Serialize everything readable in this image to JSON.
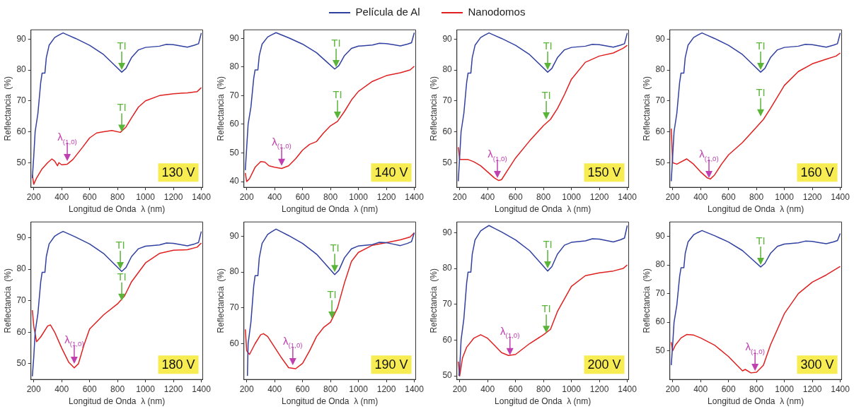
{
  "chart_data": [
    {
      "type": "line",
      "legend": "top",
      "xlabel": "Longitud de Onda  λ (nm)",
      "ylabel": "Reflectancia  (%)",
      "xlim": [
        180,
        1410
      ],
      "xticks": [
        200,
        400,
        600,
        800,
        1000,
        1200,
        1400
      ],
      "ylim": [
        42,
        93
      ],
      "yticks": [
        50,
        60,
        70,
        80,
        90
      ],
      "series": [
        {
          "name": "Película de Al",
          "color": "#3040a0",
          "x": [
            190,
            200,
            210,
            230,
            250,
            260,
            280,
            290,
            310,
            350,
            380,
            410,
            450,
            500,
            600,
            700,
            780,
            830,
            860,
            900,
            950,
            1000,
            1100,
            1150,
            1200,
            1250,
            1300,
            1350,
            1380,
            1400
          ],
          "values": [
            45,
            52,
            60,
            66,
            76,
            79,
            79,
            84,
            88,
            90.5,
            91.3,
            92,
            91.2,
            90.2,
            88,
            85,
            81.5,
            79.3,
            80.5,
            84,
            86.5,
            87.3,
            87.7,
            88.3,
            88.2,
            87.8,
            87.4,
            88,
            88.5,
            92
          ]
        },
        {
          "name": "Nanodomos",
          "color": "#e02020",
          "x": [
            190,
            200,
            220,
            260,
            300,
            330,
            350,
            370,
            380,
            400,
            440,
            480,
            550,
            600,
            650,
            700,
            760,
            820,
            860,
            900,
            950,
            1000,
            1100,
            1200,
            1300,
            1370,
            1400
          ],
          "values": [
            46,
            43,
            45,
            48,
            50,
            51.2,
            50.5,
            49,
            50,
            49.3,
            49.5,
            51,
            55,
            58,
            59.6,
            60,
            60.4,
            59.8,
            61.5,
            64.5,
            68,
            70,
            71.7,
            72.3,
            72.6,
            73,
            74.3
          ]
        }
      ],
      "annotations": [
        {
          "text": "λ$_{(1,0)}$",
          "x": 440,
          "y": 50.5
        },
        {
          "text": "TI",
          "x": 830,
          "y": 80
        },
        {
          "text": "TI",
          "x": 830,
          "y": 60
        },
        "130 V"
      ]
    },
    {
      "type": "line",
      "xlabel": "Longitud de Onda  λ (nm)",
      "ylabel": "Reflectancia  (%)",
      "xlim": [
        180,
        1410
      ],
      "xticks": [
        200,
        400,
        600,
        800,
        1000,
        1200,
        1400
      ],
      "ylim": [
        38,
        93
      ],
      "yticks": [
        40,
        50,
        60,
        70,
        80,
        90
      ],
      "series": [
        {
          "color": "#3040a0",
          "x": [
            190,
            200,
            210,
            230,
            250,
            260,
            280,
            290,
            310,
            350,
            380,
            410,
            450,
            500,
            600,
            700,
            780,
            830,
            860,
            900,
            950,
            1000,
            1100,
            1150,
            1200,
            1250,
            1300,
            1350,
            1380,
            1400
          ],
          "values": [
            44,
            52,
            60,
            66,
            76,
            79,
            79,
            84,
            88,
            90.5,
            91.3,
            92,
            91.2,
            90.2,
            88,
            85,
            81.5,
            79.3,
            80.5,
            84,
            86.5,
            87.3,
            87.7,
            88.3,
            88.2,
            87.8,
            87.4,
            88,
            88.5,
            92
          ]
        },
        {
          "color": "#e02020",
          "x": [
            190,
            200,
            220,
            260,
            300,
            330,
            360,
            400,
            450,
            500,
            550,
            600,
            650,
            700,
            750,
            800,
            850,
            900,
            950,
            1000,
            1100,
            1200,
            1300,
            1370,
            1400
          ],
          "values": [
            43,
            40,
            41,
            45,
            47,
            46.8,
            45.5,
            45,
            44.6,
            45.5,
            48,
            51,
            53,
            54,
            57,
            59.5,
            61,
            64.5,
            68.5,
            71.5,
            75,
            77,
            78,
            79,
            80.3
          ]
        }
      ],
      "annotations": [
        {
          "text": "λ$_{(1,0)}$",
          "x": 450,
          "y": 45.5
        },
        {
          "text": "TI",
          "x": 840,
          "y": 80
        },
        {
          "text": "TI",
          "x": 850,
          "y": 62
        },
        "140 V"
      ]
    },
    {
      "type": "line",
      "xlabel": "Longitud de Onda  λ (nm)",
      "ylabel": "Reflectancia  (%)",
      "xlim": [
        180,
        1410
      ],
      "xticks": [
        200,
        400,
        600,
        800,
        1000,
        1200,
        1400
      ],
      "ylim": [
        42,
        93
      ],
      "yticks": [
        50,
        60,
        70,
        80,
        90
      ],
      "series": [
        {
          "color": "#3040a0",
          "x": [
            190,
            200,
            210,
            230,
            250,
            260,
            280,
            290,
            310,
            350,
            380,
            410,
            450,
            500,
            600,
            700,
            780,
            830,
            860,
            900,
            950,
            1000,
            1100,
            1150,
            1200,
            1250,
            1300,
            1350,
            1380,
            1400
          ],
          "values": [
            44,
            52,
            60,
            66,
            76,
            79,
            79,
            84,
            88,
            90.5,
            91.3,
            92,
            91.2,
            90.2,
            88,
            85,
            81.5,
            79.3,
            80.5,
            84,
            86.5,
            87.3,
            87.7,
            88.3,
            88.2,
            87.8,
            87.4,
            88,
            88.5,
            92
          ]
        },
        {
          "color": "#e02020",
          "x": [
            190,
            200,
            220,
            260,
            300,
            350,
            400,
            450,
            480,
            500,
            550,
            600,
            700,
            800,
            850,
            900,
            950,
            1000,
            1100,
            1200,
            1300,
            1370,
            1400
          ],
          "values": [
            55,
            51,
            51,
            51,
            50.3,
            49,
            47,
            45,
            44.2,
            44.5,
            48,
            51.5,
            57,
            62,
            64,
            67.5,
            72,
            77,
            82.5,
            84.5,
            85.5,
            87,
            88
          ]
        }
      ],
      "annotations": [
        {
          "text": "λ$_{(1,0)}$",
          "x": 470,
          "y": 45
        },
        {
          "text": "TI",
          "x": 830,
          "y": 80
        },
        {
          "text": "TI",
          "x": 820,
          "y": 64
        },
        "150 V"
      ]
    },
    {
      "type": "line",
      "xlabel": "Longitud de Onda  λ (nm)",
      "ylabel": "Reflectancia  (%)",
      "xlim": [
        180,
        1410
      ],
      "xticks": [
        200,
        400,
        600,
        800,
        1000,
        1200,
        1400
      ],
      "ylim": [
        42,
        93
      ],
      "yticks": [
        50,
        60,
        70,
        80,
        90
      ],
      "series": [
        {
          "color": "#3040a0",
          "x": [
            190,
            200,
            210,
            230,
            250,
            260,
            280,
            290,
            310,
            350,
            380,
            410,
            450,
            500,
            600,
            700,
            780,
            830,
            860,
            900,
            950,
            1000,
            1100,
            1150,
            1200,
            1250,
            1300,
            1350,
            1380,
            1400
          ],
          "values": [
            44,
            52,
            60,
            66,
            76,
            79,
            79,
            84,
            88,
            90.5,
            91.3,
            92,
            91.2,
            90.2,
            88,
            85,
            81.5,
            79.3,
            80.5,
            84,
            86.5,
            87.3,
            87.7,
            88.3,
            88.2,
            87.8,
            87.4,
            88,
            88.5,
            92
          ]
        },
        {
          "color": "#e02020",
          "x": [
            190,
            200,
            230,
            300,
            350,
            400,
            450,
            470,
            500,
            550,
            600,
            700,
            800,
            850,
            900,
            1000,
            1100,
            1200,
            1300,
            1370,
            1400
          ],
          "values": [
            61,
            50,
            49.5,
            51.2,
            49.5,
            47,
            45,
            44.7,
            46,
            49.5,
            52.5,
            56.5,
            61.5,
            64,
            67.5,
            75,
            79.5,
            82,
            83.5,
            84.5,
            85.5
          ]
        }
      ],
      "annotations": [
        {
          "text": "λ$_{(1,0)}$",
          "x": 460,
          "y": 45
        },
        {
          "text": "TI",
          "x": 830,
          "y": 80
        },
        {
          "text": "TI",
          "x": 830,
          "y": 65
        },
        "160 V"
      ]
    },
    {
      "type": "line",
      "xlabel": "Longitud de Onda  λ (nm)",
      "ylabel": "Reflectancia  (%)",
      "xlim": [
        180,
        1410
      ],
      "xticks": [
        200,
        400,
        600,
        800,
        1000,
        1200,
        1400
      ],
      "ylim": [
        45,
        95
      ],
      "yticks": [
        50,
        60,
        70,
        80,
        90
      ],
      "series": [
        {
          "color": "#3040a0",
          "x": [
            190,
            200,
            210,
            230,
            250,
            260,
            280,
            290,
            310,
            350,
            380,
            410,
            450,
            500,
            600,
            700,
            780,
            830,
            860,
            900,
            950,
            1000,
            1100,
            1150,
            1200,
            1250,
            1300,
            1350,
            1380,
            1400
          ],
          "values": [
            46,
            52,
            60,
            66,
            76,
            79,
            79,
            84,
            88,
            90.5,
            91.3,
            92,
            91.2,
            90.2,
            88,
            85,
            81.5,
            79.3,
            80.5,
            84,
            86.5,
            87.3,
            87.7,
            88.3,
            88.2,
            87.8,
            87.4,
            88,
            88.5,
            92
          ]
        },
        {
          "color": "#e02020",
          "x": [
            190,
            200,
            220,
            250,
            300,
            320,
            350,
            400,
            450,
            490,
            520,
            560,
            600,
            700,
            800,
            850,
            900,
            1000,
            1100,
            1200,
            1300,
            1370,
            1400
          ],
          "values": [
            67,
            62,
            57,
            58.5,
            62,
            62.3,
            60,
            55,
            50.5,
            48.7,
            50,
            56,
            61,
            65.5,
            69,
            71.5,
            76,
            82,
            85,
            86,
            86.2,
            87,
            88.3
          ]
        }
      ],
      "annotations": [
        {
          "text": "λ$_{(1,0)}$",
          "x": 490,
          "y": 50
        },
        {
          "text": "TI",
          "x": 820,
          "y": 80
        },
        {
          "text": "TI",
          "x": 830,
          "y": 70
        },
        "180 V"
      ]
    },
    {
      "type": "line",
      "xlabel": "Longitud de Onda  λ (nm)",
      "ylabel": "Reflectancia  (%)",
      "xlim": [
        180,
        1410
      ],
      "xticks": [
        200,
        400,
        600,
        800,
        1000,
        1200,
        1400
      ],
      "ylim": [
        50,
        94
      ],
      "yticks": [
        60,
        70,
        80,
        90
      ],
      "series": [
        {
          "color": "#3040a0",
          "x": [
            205,
            210,
            230,
            250,
            260,
            280,
            290,
            310,
            350,
            380,
            410,
            450,
            500,
            600,
            700,
            780,
            830,
            860,
            900,
            950,
            1000,
            1100,
            1150,
            1200,
            1250,
            1300,
            1350,
            1380,
            1400
          ],
          "values": [
            51,
            60,
            66,
            76,
            79,
            79,
            84,
            88,
            90.5,
            91.3,
            92,
            91.2,
            90.2,
            88,
            85,
            81.5,
            79.3,
            80.5,
            84,
            86.5,
            87.3,
            87.7,
            88.3,
            88.2,
            87.8,
            87.4,
            88,
            88.5,
            91
          ]
        },
        {
          "color": "#e02020",
          "x": [
            190,
            200,
            220,
            260,
            300,
            320,
            350,
            400,
            450,
            500,
            550,
            600,
            650,
            700,
            750,
            800,
            850,
            900,
            950,
            1000,
            1100,
            1200,
            1300,
            1370,
            1400
          ],
          "values": [
            64,
            58,
            57,
            60,
            62.5,
            62.8,
            62,
            59,
            56,
            53.3,
            53,
            54.5,
            58,
            62,
            64.5,
            66,
            70,
            77,
            83,
            85.5,
            87.5,
            88.2,
            89,
            89.8,
            91
          ]
        }
      ],
      "annotations": [
        {
          "text": "λ$_{(1,0)}$",
          "x": 530,
          "y": 54
        },
        {
          "text": "TI",
          "x": 830,
          "y": 80
        },
        {
          "text": "TI",
          "x": 810,
          "y": 67
        },
        "190 V"
      ]
    },
    {
      "type": "line",
      "xlabel": "Longitud de Onda  λ (nm)",
      "ylabel": "Reflectancia  (%)",
      "xlim": [
        180,
        1410
      ],
      "xticks": [
        200,
        400,
        600,
        800,
        1000,
        1200,
        1400
      ],
      "ylim": [
        49,
        93
      ],
      "yticks": [
        50,
        60,
        70,
        80,
        90
      ],
      "series": [
        {
          "color": "#3040a0",
          "x": [
            195,
            200,
            210,
            230,
            250,
            260,
            280,
            290,
            310,
            350,
            380,
            410,
            450,
            500,
            600,
            700,
            780,
            830,
            860,
            900,
            950,
            1000,
            1100,
            1150,
            1200,
            1250,
            1300,
            1350,
            1380,
            1400
          ],
          "values": [
            50,
            52,
            60,
            66,
            76,
            79,
            79,
            84,
            88,
            90.5,
            91.3,
            92,
            91.2,
            90.2,
            88,
            85,
            81.5,
            79.3,
            80.5,
            84,
            86.5,
            87.3,
            87.7,
            88.3,
            88.2,
            87.8,
            87.4,
            88,
            88.5,
            92
          ]
        },
        {
          "color": "#e02020",
          "x": [
            190,
            200,
            220,
            250,
            300,
            350,
            400,
            450,
            500,
            550,
            600,
            700,
            800,
            850,
            900,
            1000,
            1100,
            1200,
            1300,
            1370,
            1400
          ],
          "values": [
            54,
            50,
            55,
            58,
            60.5,
            61.5,
            60.5,
            58.5,
            56.5,
            55.7,
            56,
            59,
            61.5,
            63,
            68,
            75,
            78,
            78.8,
            79.3,
            80,
            81
          ]
        }
      ],
      "annotations": [
        {
          "text": "λ$_{(1,0)}$",
          "x": 560,
          "y": 55.8
        },
        {
          "text": "TI",
          "x": 830,
          "y": 80
        },
        {
          "text": "TI",
          "x": 820,
          "y": 62
        },
        "200 V"
      ]
    },
    {
      "type": "line",
      "xlabel": "Longitud de Onda  λ (nm)",
      "ylabel": "Reflectancia  (%)",
      "xlim": [
        180,
        1410
      ],
      "xticks": [
        200,
        400,
        600,
        800,
        1000,
        1200,
        1400
      ],
      "ylim": [
        40,
        95
      ],
      "yticks": [
        50,
        60,
        70,
        80,
        90
      ],
      "series": [
        {
          "color": "#3040a0",
          "x": [
            190,
            200,
            210,
            230,
            250,
            260,
            280,
            290,
            310,
            350,
            380,
            410,
            450,
            500,
            600,
            700,
            780,
            830,
            860,
            900,
            950,
            1000,
            1100,
            1150,
            1200,
            1250,
            1300,
            1350,
            1380,
            1400
          ],
          "values": [
            45,
            52,
            60,
            66,
            76,
            79,
            79,
            84,
            88,
            90.5,
            91.3,
            92,
            91.2,
            90.2,
            88,
            85,
            81.5,
            79.3,
            80.5,
            84,
            86.5,
            87.3,
            87.7,
            88.3,
            88.2,
            87.8,
            87.4,
            88,
            88.5,
            91
          ]
        },
        {
          "color": "#e02020",
          "x": [
            190,
            200,
            220,
            260,
            300,
            350,
            400,
            500,
            600,
            700,
            720,
            760,
            800,
            850,
            900,
            1000,
            1100,
            1200,
            1300,
            1400
          ],
          "values": [
            53,
            50,
            52,
            54.5,
            55.7,
            55.5,
            54.5,
            52,
            48,
            43,
            43.5,
            42.3,
            42.5,
            45,
            52,
            63,
            70,
            74,
            76.5,
            79.5
          ]
        }
      ],
      "annotations": [
        {
          "text": "λ$_{(1,0)}$",
          "x": 790,
          "y": 43
        },
        {
          "text": "TI",
          "x": 830,
          "y": 80
        },
        "300 V"
      ]
    }
  ]
}
